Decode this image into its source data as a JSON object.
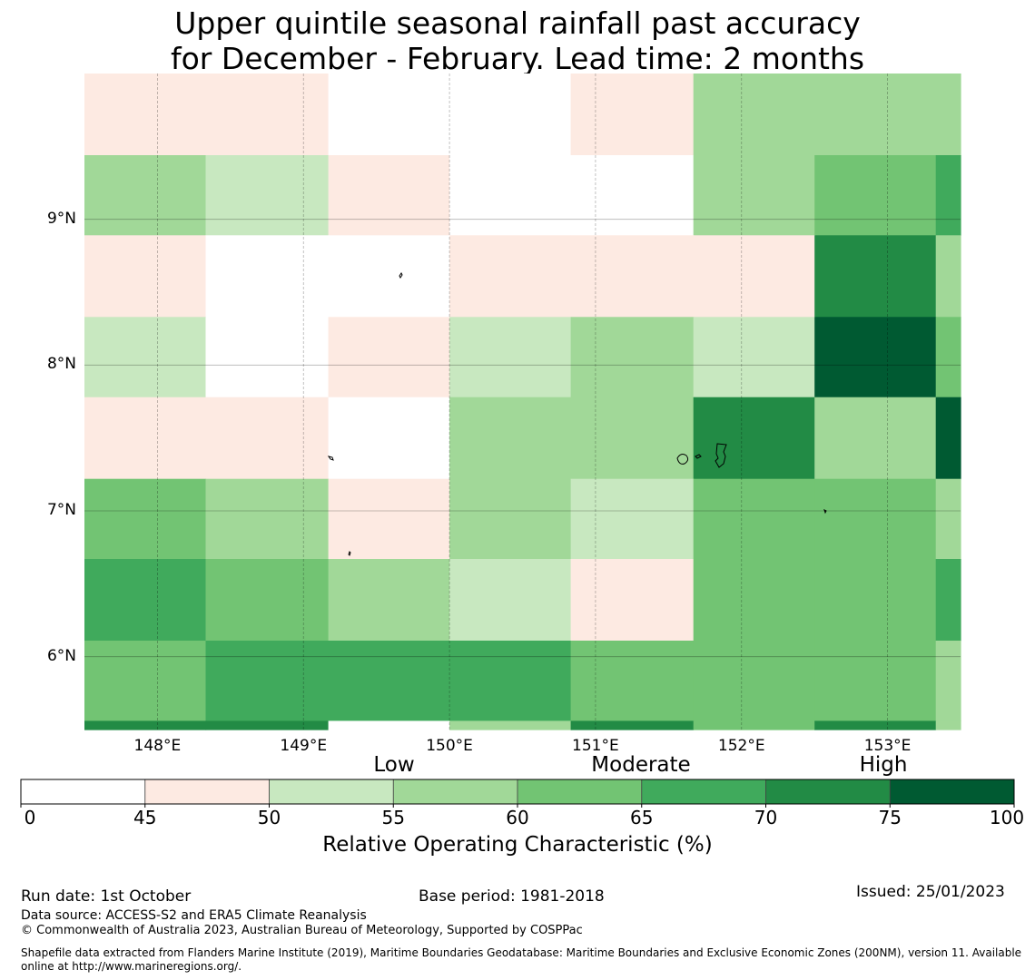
{
  "title_line1": "Upper quintile seasonal rainfall past accuracy",
  "title_line2": "for December - February. Lead time: 2 months",
  "chart_data": {
    "type": "heatmap",
    "title": "Upper quintile seasonal rainfall past accuracy for December - February. Lead time: 2 months",
    "lon_range": [
      147.5,
      153.5
    ],
    "lat_range": [
      5.5,
      10.0
    ],
    "lon_cells": [
      147.5,
      148.33,
      149.17,
      150.0,
      150.83,
      151.67,
      152.5,
      153.33,
      153.5
    ],
    "lat_cells": [
      10.0,
      9.44,
      8.89,
      8.33,
      7.78,
      7.22,
      6.67,
      6.11,
      5.56,
      5.5
    ],
    "lon_ticks": [
      "148°E",
      "149°E",
      "150°E",
      "151°E",
      "152°E",
      "153°E"
    ],
    "lon_tick_values": [
      148,
      149,
      150,
      151,
      152,
      153
    ],
    "lat_ticks": [
      "9°N",
      "8°N",
      "7°N",
      "6°N"
    ],
    "lat_tick_values": [
      9,
      8,
      7,
      6
    ],
    "roc_class_grid": [
      [
        1,
        1,
        0,
        0,
        1,
        3,
        3,
        3
      ],
      [
        3,
        2,
        1,
        0,
        0,
        3,
        4,
        5
      ],
      [
        1,
        0,
        0,
        1,
        1,
        1,
        6,
        3
      ],
      [
        2,
        0,
        1,
        2,
        3,
        2,
        7,
        4
      ],
      [
        1,
        1,
        0,
        3,
        3,
        6,
        3,
        7
      ],
      [
        4,
        3,
        1,
        3,
        2,
        4,
        4,
        3
      ],
      [
        5,
        4,
        3,
        2,
        1,
        4,
        4,
        5
      ],
      [
        4,
        5,
        5,
        5,
        4,
        4,
        4,
        3
      ],
      [
        6,
        6,
        0,
        3,
        6,
        4,
        6,
        3
      ]
    ],
    "colorbar": {
      "boundaries": [
        0,
        45,
        50,
        55,
        60,
        65,
        70,
        75,
        100
      ],
      "tick_labels": [
        "0",
        "45",
        "50",
        "55",
        "60",
        "65",
        "70",
        "75",
        "100"
      ],
      "colors": [
        "#ffffff",
        "#fdeae2",
        "#c8e8c0",
        "#a1d898",
        "#72c473",
        "#40aa5c",
        "#228b45",
        "#005a32"
      ],
      "category_labels": [
        "Low",
        "Moderate",
        "High"
      ],
      "label": "Relative Operating Characteristic (%)"
    }
  },
  "footer": {
    "run_date": "Run date: 1st October",
    "base_period": "Base period: 1981-2018",
    "issued": "Issued: 25/01/2023",
    "data_source": "Data source: ACCESS-S2 and ERA5 Climate Reanalysis",
    "copyright": "© Commonwealth of Australia 2023, Australian Bureau of Meteorology, Supported by COSPPac",
    "shapefile_line1": "Shapefile data extracted from Flanders Marine Institute (2019), Maritime Boundaries Geodatabase: Maritime Boundaries and Exclusive Economic Zones (200NM), version 11. Available",
    "shapefile_line2": "online at http://www.marineregions.org/."
  }
}
